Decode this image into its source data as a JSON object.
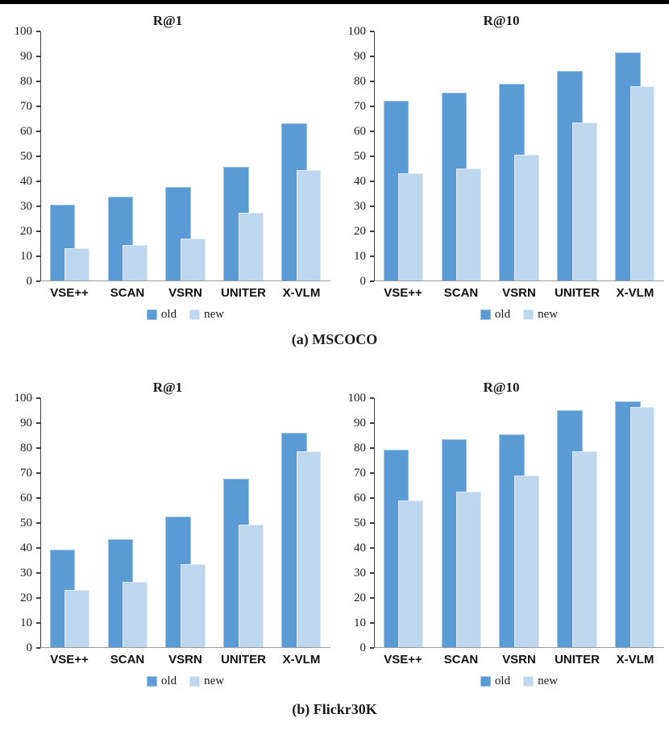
{
  "page": {
    "top_bar_color": "#000000",
    "background": "#ffffff"
  },
  "colors": {
    "old_fill": "#5B9BD5",
    "new_fill": "#BDD7EE",
    "old_border": "#9DC3E6",
    "new_border": "#DEEBF5",
    "axis_line": "#3f3f3f",
    "baseline": "#9c9c9c",
    "text": "#1a1a1a"
  },
  "captions": {
    "a": "(a) MSCOCO",
    "b": "(b) Flickr30K"
  },
  "chart_data": [
    {
      "type": "bar",
      "title": "R@1",
      "dataset": "MSCOCO",
      "categories": [
        "VSE++",
        "SCAN",
        "VSRN",
        "UNITER",
        "X-VLM"
      ],
      "series": [
        {
          "name": "old",
          "color": "#5B9BD5",
          "values": [
            30.3,
            33.8,
            37.7,
            45.7,
            63.0
          ]
        },
        {
          "name": "new",
          "color": "#BDD7EE",
          "values": [
            13.0,
            14.4,
            16.8,
            27.2,
            44.4
          ]
        }
      ],
      "ylim": [
        0,
        100
      ],
      "ytick_step": 10,
      "grid": false,
      "legend_position": "bottom",
      "legend_entries": [
        "old",
        "new"
      ]
    },
    {
      "type": "bar",
      "title": "R@10",
      "dataset": "MSCOCO",
      "categories": [
        "VSE++",
        "SCAN",
        "VSRN",
        "UNITER",
        "X-VLM"
      ],
      "series": [
        {
          "name": "old",
          "color": "#5B9BD5",
          "values": [
            72.3,
            75.5,
            79.1,
            84.2,
            91.5
          ]
        },
        {
          "name": "new",
          "color": "#BDD7EE",
          "values": [
            43.0,
            45.1,
            50.5,
            63.4,
            78.1
          ]
        }
      ],
      "ylim": [
        0,
        100
      ],
      "ytick_step": 10,
      "grid": false,
      "legend_position": "bottom",
      "legend_entries": [
        "old",
        "new"
      ]
    },
    {
      "type": "bar",
      "title": "R@1",
      "dataset": "Flickr30K",
      "categories": [
        "VSE++",
        "SCAN",
        "VSRN",
        "UNITER",
        "X-VLM"
      ],
      "series": [
        {
          "name": "old",
          "color": "#5B9BD5",
          "values": [
            39.2,
            43.4,
            52.5,
            67.5,
            86.0
          ]
        },
        {
          "name": "new",
          "color": "#BDD7EE",
          "values": [
            23.0,
            26.2,
            33.4,
            49.3,
            78.5
          ]
        }
      ],
      "ylim": [
        0,
        100
      ],
      "ytick_step": 10,
      "grid": false,
      "legend_position": "bottom",
      "legend_entries": [
        "old",
        "new"
      ]
    },
    {
      "type": "bar",
      "title": "R@10",
      "dataset": "Flickr30K",
      "categories": [
        "VSE++",
        "SCAN",
        "VSRN",
        "UNITER",
        "X-VLM"
      ],
      "series": [
        {
          "name": "old",
          "color": "#5B9BD5",
          "values": [
            79.2,
            83.4,
            85.6,
            95.1,
            98.6
          ]
        },
        {
          "name": "new",
          "color": "#BDD7EE",
          "values": [
            59.0,
            62.5,
            69.0,
            78.5,
            96.4
          ]
        }
      ],
      "ylim": [
        0,
        100
      ],
      "ytick_step": 10,
      "grid": false,
      "legend_position": "bottom",
      "legend_entries": [
        "old",
        "new"
      ]
    }
  ]
}
